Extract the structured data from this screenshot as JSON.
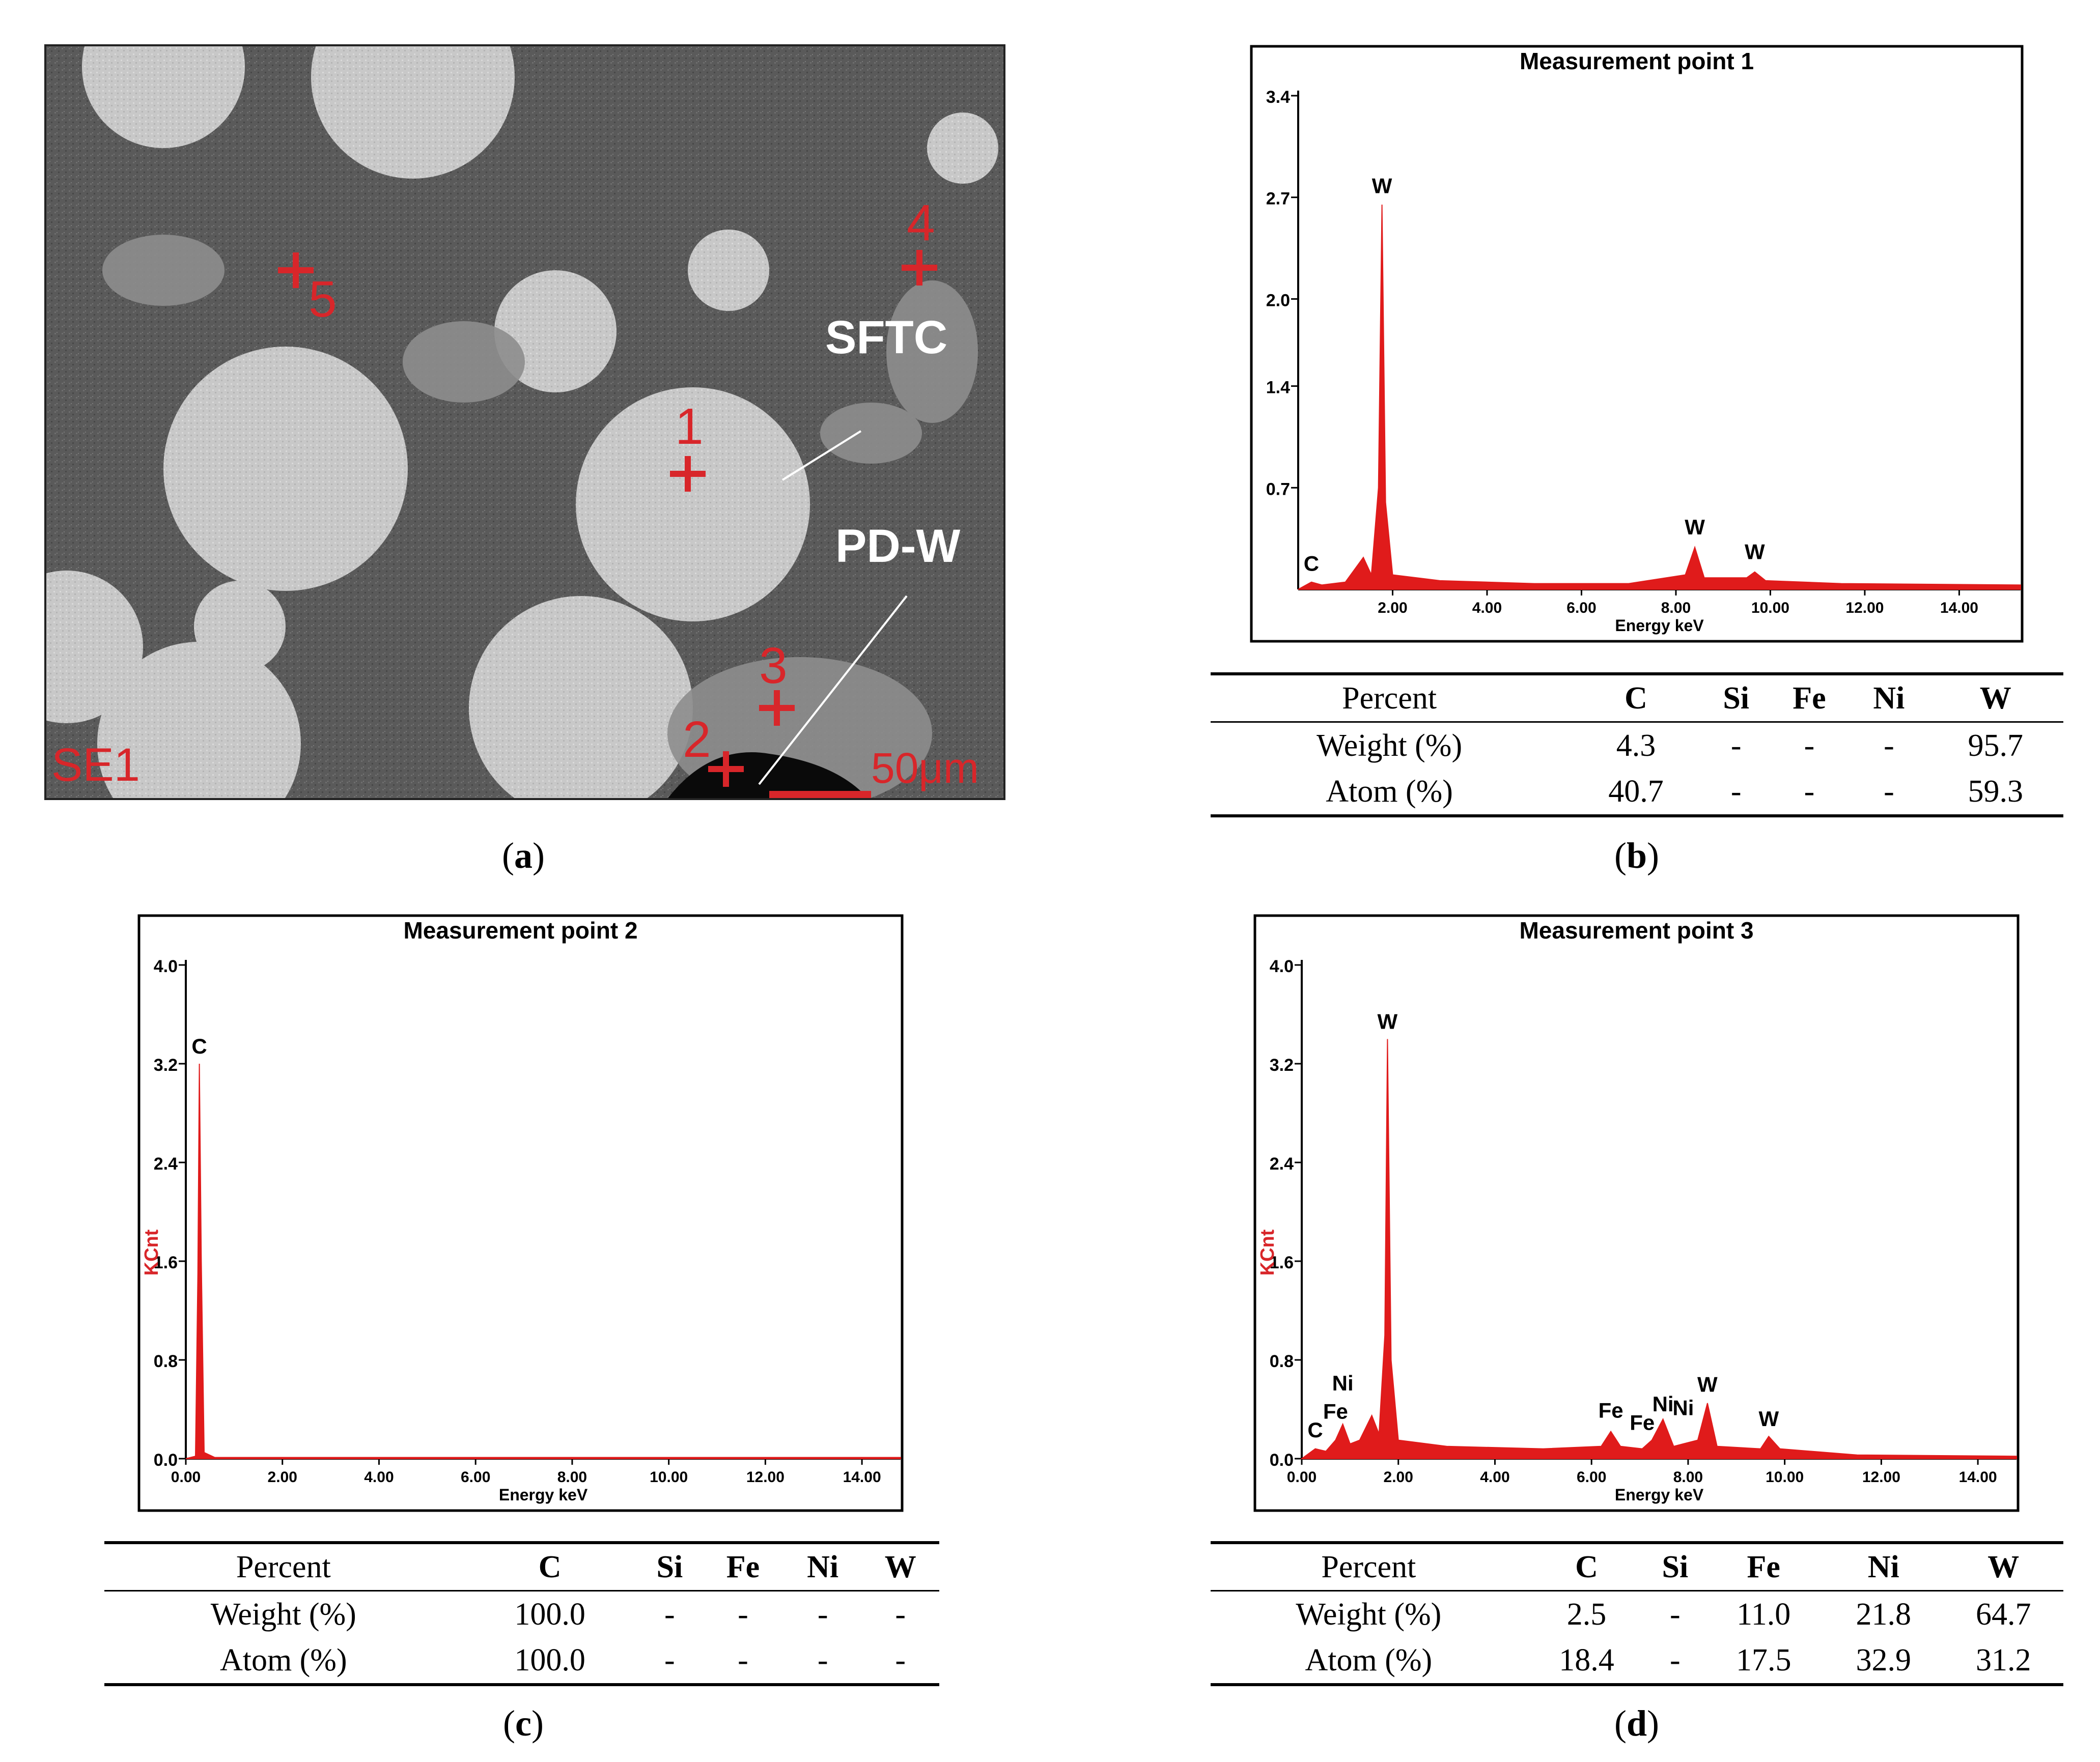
{
  "panel_a": {
    "caption": "a",
    "labels": {
      "sftc": "SFTC",
      "pdw": "PD-W",
      "se1": "SE1",
      "scale": "50μm"
    },
    "points": [
      "1",
      "2",
      "3",
      "4",
      "5"
    ],
    "colors": {
      "marker": "#d8262a",
      "matrix": "#575757",
      "particle": "#c9c9c9"
    }
  },
  "panel_b": {
    "caption": "b"
  },
  "panel_c": {
    "caption": "c"
  },
  "panel_d": {
    "caption": "d"
  },
  "chart_data": [
    {
      "type": "line",
      "panel": "b",
      "title": "Measurement point 1",
      "xlabel": "Energy keV",
      "ylabel": "",
      "xlim": [
        0,
        15.3
      ],
      "ylim": [
        0,
        3.4
      ],
      "x_ticks": [
        "2.00",
        "4.00",
        "6.00",
        "8.00",
        "10.00",
        "12.00",
        "14.00"
      ],
      "y_ticks": [
        "0.7",
        "1.4",
        "2.0",
        "2.7",
        "3.4"
      ],
      "series": [
        {
          "values_keV_kcnt": [
            [
              0,
              0
            ],
            [
              0.28,
              0.05
            ],
            [
              0.5,
              0.03
            ],
            [
              1.0,
              0.05
            ],
            [
              1.38,
              0.22
            ],
            [
              1.55,
              0.1
            ],
            [
              1.7,
              0.7
            ],
            [
              1.775,
              2.65
            ],
            [
              1.85,
              0.6
            ],
            [
              2.0,
              0.1
            ],
            [
              3.0,
              0.06
            ],
            [
              5.0,
              0.04
            ],
            [
              7.0,
              0.04
            ],
            [
              8.2,
              0.1
            ],
            [
              8.4,
              0.29
            ],
            [
              8.6,
              0.08
            ],
            [
              9.5,
              0.08
            ],
            [
              9.67,
              0.12
            ],
            [
              9.9,
              0.06
            ],
            [
              11.5,
              0.04
            ],
            [
              15.3,
              0.03
            ]
          ]
        }
      ],
      "peak_labels": [
        {
          "text": "C",
          "x": 0.28,
          "y": 0.1
        },
        {
          "text": "W",
          "x": 1.775,
          "y": 2.7
        },
        {
          "text": "W",
          "x": 8.4,
          "y": 0.35
        },
        {
          "text": "W",
          "x": 9.67,
          "y": 0.18
        }
      ],
      "table": {
        "header": [
          "Percent",
          "C",
          "Si",
          "Fe",
          "Ni",
          "W"
        ],
        "rows": [
          [
            "Weight (%)",
            "4.3",
            "-",
            "-",
            "-",
            "95.7"
          ],
          [
            "Atom (%)",
            "40.7",
            "-",
            "-",
            "-",
            "59.3"
          ]
        ]
      }
    },
    {
      "type": "line",
      "panel": "c",
      "title": "Measurement point 2",
      "xlabel": "Energy keV",
      "ylabel": "KCnt",
      "xlim": [
        0,
        14.8
      ],
      "ylim": [
        0,
        4.0
      ],
      "x_ticks": [
        "0.00",
        "2.00",
        "4.00",
        "6.00",
        "8.00",
        "10.00",
        "12.00",
        "14.00"
      ],
      "y_ticks": [
        "0.0",
        "0.8",
        "1.6",
        "2.4",
        "3.2",
        "4.0"
      ],
      "series": [
        {
          "values_keV_kcnt": [
            [
              0,
              0
            ],
            [
              0.2,
              0.02
            ],
            [
              0.25,
              1.5
            ],
            [
              0.28,
              3.2
            ],
            [
              0.32,
              1.6
            ],
            [
              0.38,
              0.05
            ],
            [
              0.6,
              0.01
            ],
            [
              14.8,
              0.01
            ]
          ]
        }
      ],
      "peak_labels": [
        {
          "text": "C",
          "x": 0.28,
          "y": 3.25
        }
      ],
      "table": {
        "header": [
          "Percent",
          "C",
          "Si",
          "Fe",
          "Ni",
          "W"
        ],
        "rows": [
          [
            "Weight (%)",
            "100.0",
            "-",
            "-",
            "-",
            "-"
          ],
          [
            "Atom (%)",
            "100.0",
            "-",
            "-",
            "-",
            "-"
          ]
        ]
      }
    },
    {
      "type": "line",
      "panel": "d",
      "title": "Measurement point 3",
      "xlabel": "Energy keV",
      "ylabel": "KCnt",
      "xlim": [
        0,
        14.8
      ],
      "ylim": [
        0,
        4.0
      ],
      "x_ticks": [
        "0.00",
        "2.00",
        "4.00",
        "6.00",
        "8.00",
        "10.00",
        "12.00",
        "14.00"
      ],
      "y_ticks": [
        "0.0",
        "0.8",
        "1.6",
        "2.4",
        "3.2",
        "4.0"
      ],
      "series": [
        {
          "values_keV_kcnt": [
            [
              0,
              0
            ],
            [
              0.28,
              0.08
            ],
            [
              0.5,
              0.06
            ],
            [
              0.7,
              0.15
            ],
            [
              0.85,
              0.28
            ],
            [
              1.0,
              0.12
            ],
            [
              1.2,
              0.15
            ],
            [
              1.45,
              0.35
            ],
            [
              1.6,
              0.2
            ],
            [
              1.72,
              1.0
            ],
            [
              1.775,
              3.4
            ],
            [
              1.85,
              0.8
            ],
            [
              2.0,
              0.15
            ],
            [
              3.0,
              0.1
            ],
            [
              5.0,
              0.08
            ],
            [
              6.2,
              0.1
            ],
            [
              6.4,
              0.22
            ],
            [
              6.6,
              0.1
            ],
            [
              7.05,
              0.08
            ],
            [
              7.25,
              0.15
            ],
            [
              7.48,
              0.32
            ],
            [
              7.7,
              0.1
            ],
            [
              8.2,
              0.15
            ],
            [
              8.4,
              0.45
            ],
            [
              8.6,
              0.1
            ],
            [
              9.5,
              0.08
            ],
            [
              9.67,
              0.18
            ],
            [
              9.9,
              0.08
            ],
            [
              11.5,
              0.03
            ],
            [
              14.8,
              0.02
            ]
          ]
        }
      ],
      "peak_labels": [
        {
          "text": "C",
          "x": 0.28,
          "y": 0.14
        },
        {
          "text": "Fe",
          "x": 0.7,
          "y": 0.29
        },
        {
          "text": "Ni",
          "x": 0.85,
          "y": 0.52
        },
        {
          "text": "W",
          "x": 1.775,
          "y": 3.45
        },
        {
          "text": "Fe",
          "x": 6.4,
          "y": 0.3
        },
        {
          "text": "Fe",
          "x": 7.05,
          "y": 0.2
        },
        {
          "text": "Ni",
          "x": 7.48,
          "y": 0.35
        },
        {
          "text": "Ni",
          "x": 7.9,
          "y": 0.32
        },
        {
          "text": "W",
          "x": 8.4,
          "y": 0.51
        },
        {
          "text": "W",
          "x": 9.67,
          "y": 0.23
        }
      ],
      "table": {
        "header": [
          "Percent",
          "C",
          "Si",
          "Fe",
          "Ni",
          "W"
        ],
        "rows": [
          [
            "Weight (%)",
            "2.5",
            "-",
            "11.0",
            "21.8",
            "64.7"
          ],
          [
            "Atom (%)",
            "18.4",
            "-",
            "17.5",
            "32.9",
            "31.2"
          ]
        ]
      }
    }
  ]
}
